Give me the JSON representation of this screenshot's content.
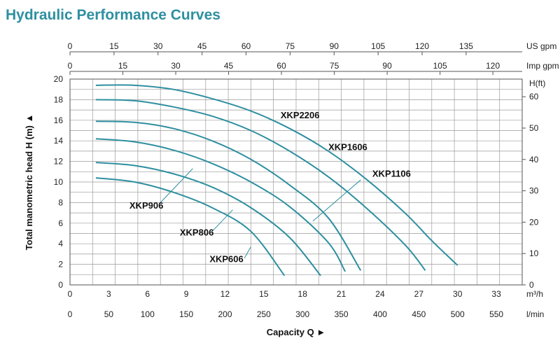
{
  "chart_data": {
    "type": "line",
    "title": "Hydraulic Performance Curves",
    "ylabel": "Total manometric head H (m)",
    "xlabel": "Capacity Q",
    "ylim": [
      0,
      20
    ],
    "xlim_m3h": [
      0,
      35
    ],
    "grid": true,
    "y_ticks": [
      0,
      2,
      4,
      6,
      8,
      10,
      12,
      14,
      16,
      18,
      20
    ],
    "secondary_y": {
      "unit": "H(ft)",
      "ticks": [
        0,
        10,
        20,
        30,
        40,
        50,
        60
      ],
      "factor_m_per_unit": 0.3048
    },
    "x_axes": [
      {
        "unit": "US gpm",
        "position": "top",
        "ticks": [
          0,
          15,
          30,
          45,
          60,
          75,
          90,
          105,
          120,
          135
        ],
        "factor_m3h_per_unit": 0.22712
      },
      {
        "unit": "Imp gpm",
        "position": "top",
        "ticks": [
          0,
          15,
          30,
          45,
          60,
          75,
          90,
          105,
          120
        ],
        "factor_m3h_per_unit": 0.27277
      },
      {
        "unit": "m³/h",
        "position": "bottom",
        "ticks": [
          0,
          3,
          6,
          9,
          12,
          15,
          18,
          21,
          24,
          27,
          30,
          33
        ],
        "factor_m3h_per_unit": 1
      },
      {
        "unit": "l/min",
        "position": "bottom",
        "ticks": [
          0,
          50,
          100,
          150,
          200,
          250,
          300,
          350,
          400,
          450,
          500,
          550
        ],
        "factor_m3h_per_unit": 0.06
      }
    ],
    "series": [
      {
        "name": "XKP2206",
        "x": [
          2,
          5,
          8,
          11,
          14,
          17,
          20,
          23,
          26,
          28,
          30
        ],
        "y": [
          19.4,
          19.4,
          19.0,
          18.1,
          16.9,
          15.2,
          13.0,
          10.2,
          6.9,
          4.3,
          1.9
        ]
      },
      {
        "name": "XKP1606",
        "x": [
          2,
          5,
          8,
          11,
          14,
          17,
          20,
          23,
          26,
          27.5
        ],
        "y": [
          18.0,
          17.9,
          17.3,
          16.4,
          15.0,
          13.0,
          10.5,
          7.4,
          3.8,
          1.4
        ]
      },
      {
        "name": "XKP1106",
        "x": [
          2,
          5,
          8,
          11,
          14,
          17,
          20,
          22.5
        ],
        "y": [
          15.9,
          15.8,
          15.2,
          14.0,
          12.2,
          9.7,
          6.5,
          1.4
        ]
      },
      {
        "name": "XKP906",
        "x": [
          2,
          5,
          8,
          11,
          14,
          17,
          20,
          21.3
        ],
        "y": [
          14.2,
          13.9,
          13.1,
          11.8,
          10.0,
          7.6,
          4.1,
          1.3
        ]
      },
      {
        "name": "XKP806",
        "x": [
          2,
          5,
          8,
          11,
          14,
          17,
          19.4
        ],
        "y": [
          11.9,
          11.6,
          10.8,
          9.5,
          7.5,
          4.6,
          0.9
        ]
      },
      {
        "name": "XKP606",
        "x": [
          2,
          5,
          8,
          11,
          14,
          16.6
        ],
        "y": [
          10.4,
          10.0,
          9.0,
          7.5,
          5.2,
          0.9
        ]
      }
    ],
    "labels": [
      {
        "text": "XKP2206",
        "x": 16.3,
        "y": 16.2
      },
      {
        "text": "XKP1606",
        "x": 20.0,
        "y": 13.1
      },
      {
        "text": "XKP1106",
        "x": 23.4,
        "y": 10.5
      },
      {
        "text": "XKP906",
        "x": 4.6,
        "y": 7.4
      },
      {
        "text": "XKP806",
        "x": 8.5,
        "y": 4.8
      },
      {
        "text": "XKP606",
        "x": 10.8,
        "y": 2.2
      }
    ],
    "leaders": [
      {
        "from": [
          22.5,
          10.2
        ],
        "to": [
          18.8,
          6.2
        ]
      },
      {
        "from": [
          9.5,
          8.1
        ],
        "to": [
          9.5,
          8.1
        ]
      },
      {
        "from": [
          7.0,
          8.0
        ],
        "to": [
          9.5,
          11.3
        ]
      },
      {
        "from": [
          11.0,
          5.2
        ],
        "to": [
          12.6,
          7.3
        ]
      },
      {
        "from": [
          13.5,
          2.6
        ],
        "to": [
          14.0,
          3.7
        ]
      }
    ],
    "curve_color": "#2e8fa0"
  }
}
